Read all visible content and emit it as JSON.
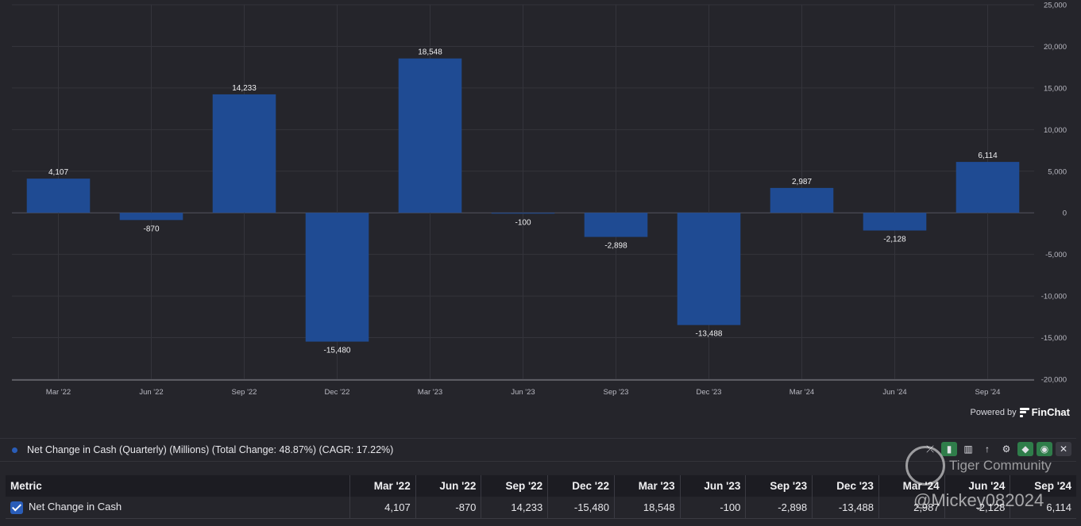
{
  "chart_data": {
    "type": "bar",
    "categories": [
      "Mar '22",
      "Jun '22",
      "Sep '22",
      "Dec '22",
      "Mar '23",
      "Jun '23",
      "Sep '23",
      "Dec '23",
      "Mar '24",
      "Jun '24",
      "Sep '24"
    ],
    "values": [
      4107,
      -870,
      14233,
      -15480,
      18548,
      -100,
      -2898,
      -13488,
      2987,
      -2128,
      6114
    ],
    "value_labels": [
      "4,107",
      "-870",
      "14,233",
      "-15,480",
      "18,548",
      "-100",
      "-2,898",
      "-13,488",
      "2,987",
      "-2,128",
      "6,114"
    ],
    "y_ticks": [
      25000,
      20000,
      15000,
      10000,
      5000,
      0,
      -5000,
      -10000,
      -15000,
      -20000
    ],
    "y_tick_labels": [
      "25,000",
      "20,000",
      "15,000",
      "10,000",
      "5,000",
      "0",
      "-5,000",
      "-10,000",
      "-15,000",
      "-20,000"
    ],
    "ylim": [
      -20000,
      25000
    ],
    "y_axis_side": "right",
    "grid": true,
    "bar_color": "#1f4b93"
  },
  "powered": {
    "prefix": "Powered by",
    "brand": "FinChat"
  },
  "legend": {
    "label": "Net Change in Cash (Quarterly) (Millions) (Total Change: 48.87%) (CAGR: 17.22%)",
    "color": "#2a5db8"
  },
  "toolbar": {
    "icons": [
      "trend-off-icon",
      "bar-chart-icon",
      "column-chart-icon",
      "sort-icon",
      "gear-icon",
      "tag-icon",
      "eye-icon",
      "close-icon"
    ]
  },
  "watermark": {
    "title": "Tiger Community",
    "user": "@Mickey082024"
  },
  "table": {
    "header_first": "Metric",
    "headers": [
      "Mar '22",
      "Jun '22",
      "Sep '22",
      "Dec '22",
      "Mar '23",
      "Jun '23",
      "Sep '23",
      "Dec '23",
      "Mar '24",
      "Jun '24",
      "Sep '24"
    ],
    "row_label": "Net Change in Cash",
    "row_values": [
      "4,107",
      "-870",
      "14,233",
      "-15,480",
      "18,548",
      "-100",
      "-2,898",
      "-13,488",
      "2,987",
      "-2,128",
      "6,114"
    ]
  }
}
